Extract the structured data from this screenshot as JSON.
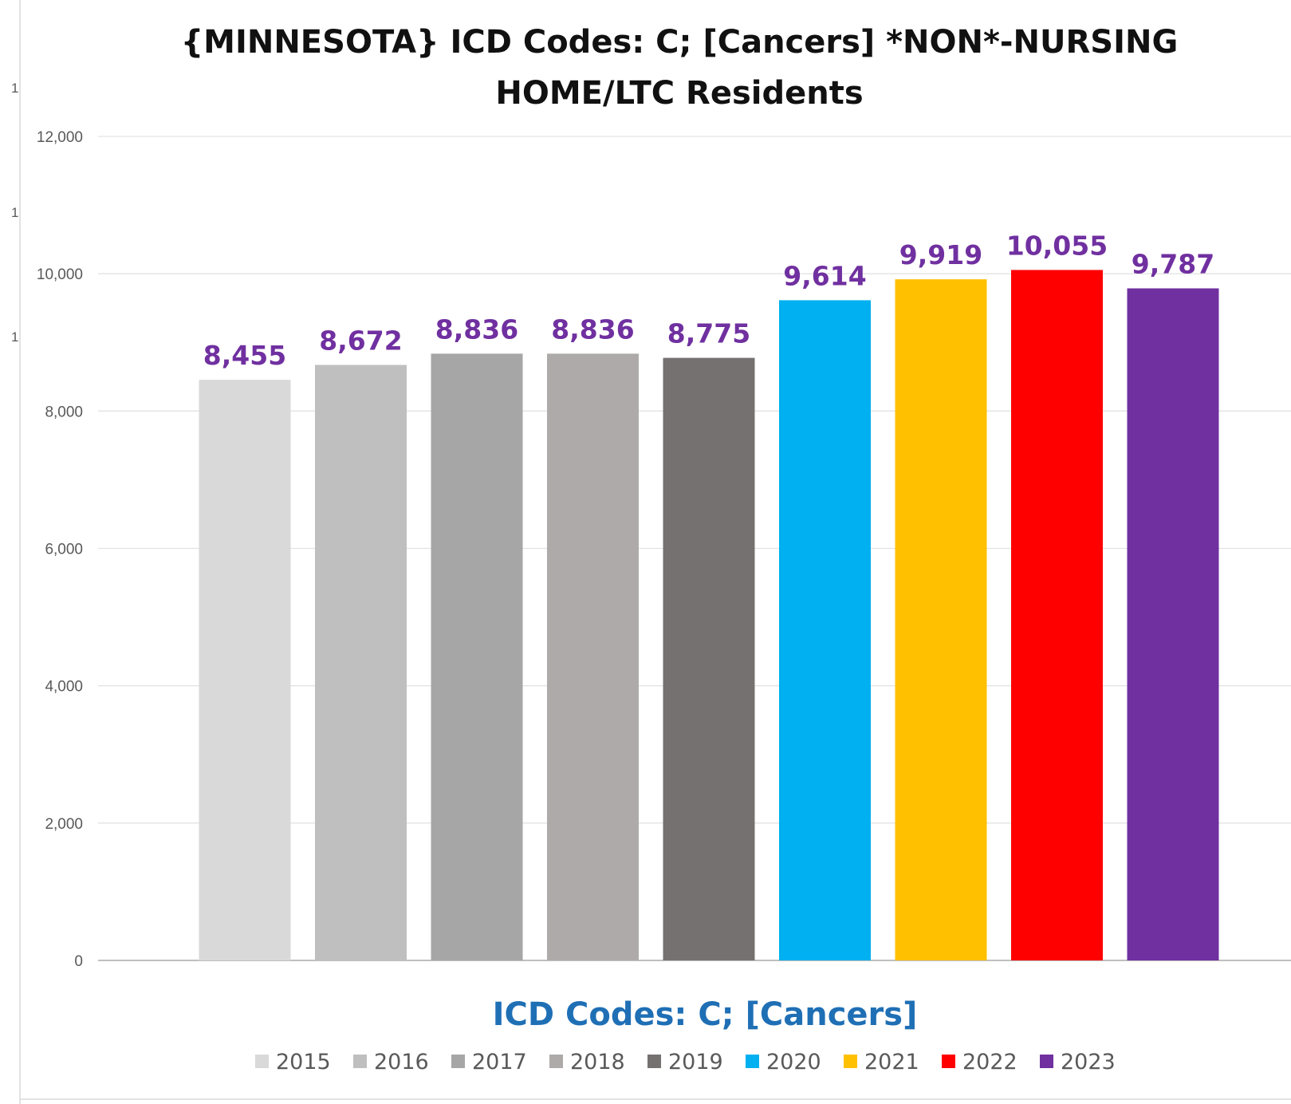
{
  "chart_data": {
    "type": "bar",
    "title_lines": [
      "{MINNESOTA}  ICD Codes: C;  [Cancers] *NON*-NURSING",
      "HOME/LTC Residents"
    ],
    "xlabel": "ICD Codes: C;  [Cancers]",
    "ylabel": "",
    "ylim": [
      0,
      12000
    ],
    "yticks": [
      0,
      2000,
      4000,
      6000,
      8000,
      10000,
      12000
    ],
    "ytick_labels": [
      "0",
      "2,000",
      "4,000",
      "6,000",
      "8,000",
      "10,000",
      "12,000"
    ],
    "grid": true,
    "legend_position": "bottom",
    "series": [
      {
        "name": "2015",
        "value": 8455,
        "label": "8,455",
        "color": "#D9D9D9"
      },
      {
        "name": "2016",
        "value": 8672,
        "label": "8,672",
        "color": "#BFBFBF"
      },
      {
        "name": "2017",
        "value": 8836,
        "label": "8,836",
        "color": "#A6A6A6"
      },
      {
        "name": "2018",
        "value": 8836,
        "label": "8,836",
        "color": "#AEAAAA"
      },
      {
        "name": "2019",
        "value": 8775,
        "label": "8,775",
        "color": "#767171"
      },
      {
        "name": "2020",
        "value": 9614,
        "label": "9,614",
        "color": "#00B0F0"
      },
      {
        "name": "2021",
        "value": 9919,
        "label": "9,919",
        "color": "#FFC000"
      },
      {
        "name": "2022",
        "value": 10055,
        "label": "10,055",
        "color": "#FF0000"
      },
      {
        "name": "2023",
        "value": 9787,
        "label": "9,787",
        "color": "#7030A0"
      }
    ]
  },
  "stray_marks": [
    "1",
    "1",
    "1"
  ]
}
